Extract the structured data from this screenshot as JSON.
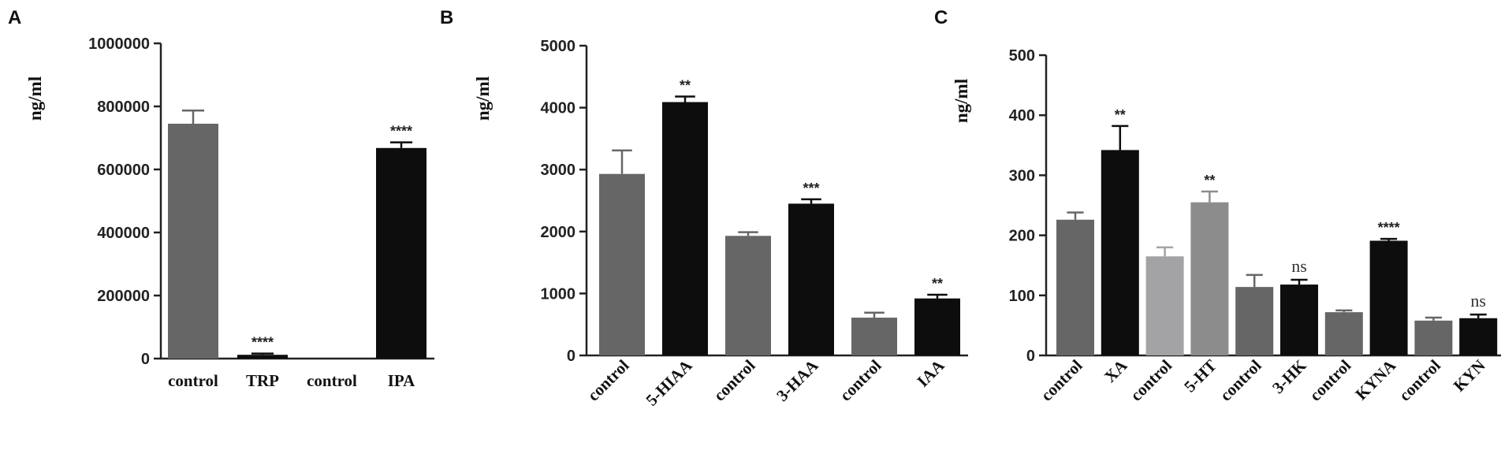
{
  "chart_data": [
    {
      "type": "bar",
      "panel_label": "A",
      "ylabel": "ng/ml",
      "ylim": [
        0,
        1000000
      ],
      "yticks": [
        0,
        200000,
        400000,
        600000,
        800000,
        1000000
      ],
      "ytick_labels": [
        "0",
        "200000",
        "400000",
        "600000",
        "800000",
        "1000000"
      ],
      "categories": [
        "control",
        "TRP",
        "control",
        "IPA"
      ],
      "values": [
        745000,
        12000,
        0,
        668000
      ],
      "errors": [
        42000,
        4000,
        0,
        18000
      ],
      "significance": [
        "",
        "****",
        "",
        "****"
      ],
      "colors": [
        "#666666",
        "#0d0d0d",
        "#666666",
        "#0d0d0d"
      ],
      "xtick_rotation": 0
    },
    {
      "type": "bar",
      "panel_label": "B",
      "ylabel": "ng/ml",
      "ylim": [
        0,
        5000
      ],
      "yticks": [
        0,
        1000,
        2000,
        3000,
        4000,
        5000
      ],
      "ytick_labels": [
        "0",
        "1000",
        "2000",
        "3000",
        "4000",
        "5000"
      ],
      "categories": [
        "control",
        "5-HIAA",
        "control",
        "3-HAA",
        "control",
        "IAA"
      ],
      "values": [
        2930,
        4090,
        1930,
        2450,
        610,
        920
      ],
      "errors": [
        380,
        90,
        60,
        70,
        80,
        60
      ],
      "significance": [
        "",
        "**",
        "",
        "***",
        "",
        "**"
      ],
      "colors": [
        "#666666",
        "#0d0d0d",
        "#666666",
        "#0d0d0d",
        "#666666",
        "#0d0d0d"
      ],
      "xtick_rotation": -45
    },
    {
      "type": "bar",
      "panel_label": "C",
      "ylabel": "ng/ml",
      "ylim": [
        0,
        500
      ],
      "yticks": [
        0,
        100,
        200,
        300,
        400,
        500
      ],
      "ytick_labels": [
        "0",
        "100",
        "200",
        "300",
        "400",
        "500"
      ],
      "categories": [
        "control",
        "XA",
        "control",
        "5-HT",
        "control",
        "3-HK",
        "control",
        "KYNA",
        "control",
        "KYN"
      ],
      "values": [
        226,
        342,
        165,
        255,
        114,
        118,
        72,
        191,
        58,
        62
      ],
      "errors": [
        12,
        40,
        15,
        18,
        20,
        8,
        3,
        3,
        5,
        6
      ],
      "significance": [
        "",
        "**",
        "",
        "**",
        "",
        "ns",
        "",
        "****",
        "",
        "ns"
      ],
      "colors": [
        "#666666",
        "#0d0d0d",
        "#a3a3a6",
        "#8c8c8c",
        "#666666",
        "#0d0d0d",
        "#666666",
        "#0d0d0d",
        "#666666",
        "#0d0d0d"
      ],
      "xtick_rotation": -45
    }
  ]
}
